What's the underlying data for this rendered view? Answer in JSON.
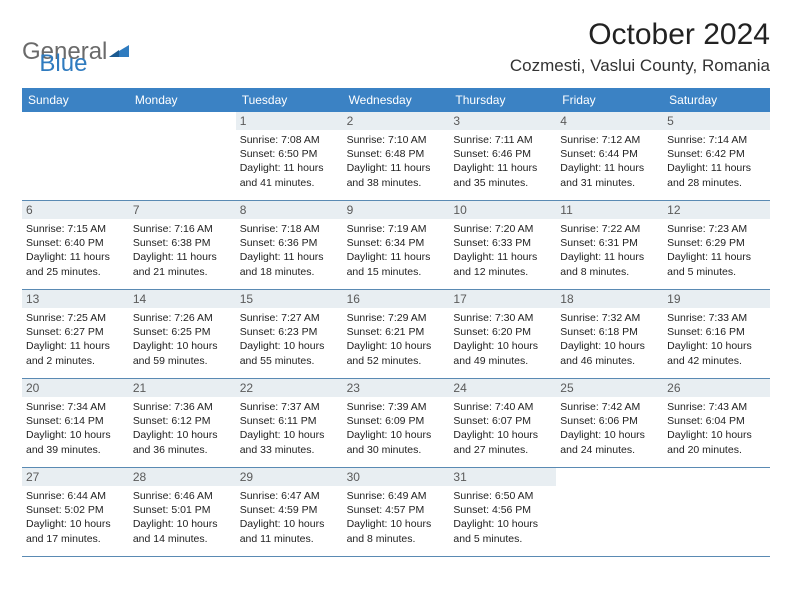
{
  "brand": {
    "part1": "General",
    "part2": "Blue"
  },
  "title": "October 2024",
  "location": "Cozmesti, Vaslui County, Romania",
  "header_bg": "#3b82c4",
  "dow": [
    "Sunday",
    "Monday",
    "Tuesday",
    "Wednesday",
    "Thursday",
    "Friday",
    "Saturday"
  ],
  "weeks": [
    [
      {
        "n": "",
        "sr": "",
        "ss": "",
        "dl": "",
        "empty": true
      },
      {
        "n": "",
        "sr": "",
        "ss": "",
        "dl": "",
        "empty": true
      },
      {
        "n": "1",
        "sr": "Sunrise: 7:08 AM",
        "ss": "Sunset: 6:50 PM",
        "dl": "Daylight: 11 hours and 41 minutes."
      },
      {
        "n": "2",
        "sr": "Sunrise: 7:10 AM",
        "ss": "Sunset: 6:48 PM",
        "dl": "Daylight: 11 hours and 38 minutes."
      },
      {
        "n": "3",
        "sr": "Sunrise: 7:11 AM",
        "ss": "Sunset: 6:46 PM",
        "dl": "Daylight: 11 hours and 35 minutes."
      },
      {
        "n": "4",
        "sr": "Sunrise: 7:12 AM",
        "ss": "Sunset: 6:44 PM",
        "dl": "Daylight: 11 hours and 31 minutes."
      },
      {
        "n": "5",
        "sr": "Sunrise: 7:14 AM",
        "ss": "Sunset: 6:42 PM",
        "dl": "Daylight: 11 hours and 28 minutes."
      }
    ],
    [
      {
        "n": "6",
        "sr": "Sunrise: 7:15 AM",
        "ss": "Sunset: 6:40 PM",
        "dl": "Daylight: 11 hours and 25 minutes."
      },
      {
        "n": "7",
        "sr": "Sunrise: 7:16 AM",
        "ss": "Sunset: 6:38 PM",
        "dl": "Daylight: 11 hours and 21 minutes."
      },
      {
        "n": "8",
        "sr": "Sunrise: 7:18 AM",
        "ss": "Sunset: 6:36 PM",
        "dl": "Daylight: 11 hours and 18 minutes."
      },
      {
        "n": "9",
        "sr": "Sunrise: 7:19 AM",
        "ss": "Sunset: 6:34 PM",
        "dl": "Daylight: 11 hours and 15 minutes."
      },
      {
        "n": "10",
        "sr": "Sunrise: 7:20 AM",
        "ss": "Sunset: 6:33 PM",
        "dl": "Daylight: 11 hours and 12 minutes."
      },
      {
        "n": "11",
        "sr": "Sunrise: 7:22 AM",
        "ss": "Sunset: 6:31 PM",
        "dl": "Daylight: 11 hours and 8 minutes."
      },
      {
        "n": "12",
        "sr": "Sunrise: 7:23 AM",
        "ss": "Sunset: 6:29 PM",
        "dl": "Daylight: 11 hours and 5 minutes."
      }
    ],
    [
      {
        "n": "13",
        "sr": "Sunrise: 7:25 AM",
        "ss": "Sunset: 6:27 PM",
        "dl": "Daylight: 11 hours and 2 minutes."
      },
      {
        "n": "14",
        "sr": "Sunrise: 7:26 AM",
        "ss": "Sunset: 6:25 PM",
        "dl": "Daylight: 10 hours and 59 minutes."
      },
      {
        "n": "15",
        "sr": "Sunrise: 7:27 AM",
        "ss": "Sunset: 6:23 PM",
        "dl": "Daylight: 10 hours and 55 minutes."
      },
      {
        "n": "16",
        "sr": "Sunrise: 7:29 AM",
        "ss": "Sunset: 6:21 PM",
        "dl": "Daylight: 10 hours and 52 minutes."
      },
      {
        "n": "17",
        "sr": "Sunrise: 7:30 AM",
        "ss": "Sunset: 6:20 PM",
        "dl": "Daylight: 10 hours and 49 minutes."
      },
      {
        "n": "18",
        "sr": "Sunrise: 7:32 AM",
        "ss": "Sunset: 6:18 PM",
        "dl": "Daylight: 10 hours and 46 minutes."
      },
      {
        "n": "19",
        "sr": "Sunrise: 7:33 AM",
        "ss": "Sunset: 6:16 PM",
        "dl": "Daylight: 10 hours and 42 minutes."
      }
    ],
    [
      {
        "n": "20",
        "sr": "Sunrise: 7:34 AM",
        "ss": "Sunset: 6:14 PM",
        "dl": "Daylight: 10 hours and 39 minutes."
      },
      {
        "n": "21",
        "sr": "Sunrise: 7:36 AM",
        "ss": "Sunset: 6:12 PM",
        "dl": "Daylight: 10 hours and 36 minutes."
      },
      {
        "n": "22",
        "sr": "Sunrise: 7:37 AM",
        "ss": "Sunset: 6:11 PM",
        "dl": "Daylight: 10 hours and 33 minutes."
      },
      {
        "n": "23",
        "sr": "Sunrise: 7:39 AM",
        "ss": "Sunset: 6:09 PM",
        "dl": "Daylight: 10 hours and 30 minutes."
      },
      {
        "n": "24",
        "sr": "Sunrise: 7:40 AM",
        "ss": "Sunset: 6:07 PM",
        "dl": "Daylight: 10 hours and 27 minutes."
      },
      {
        "n": "25",
        "sr": "Sunrise: 7:42 AM",
        "ss": "Sunset: 6:06 PM",
        "dl": "Daylight: 10 hours and 24 minutes."
      },
      {
        "n": "26",
        "sr": "Sunrise: 7:43 AM",
        "ss": "Sunset: 6:04 PM",
        "dl": "Daylight: 10 hours and 20 minutes."
      }
    ],
    [
      {
        "n": "27",
        "sr": "Sunrise: 6:44 AM",
        "ss": "Sunset: 5:02 PM",
        "dl": "Daylight: 10 hours and 17 minutes."
      },
      {
        "n": "28",
        "sr": "Sunrise: 6:46 AM",
        "ss": "Sunset: 5:01 PM",
        "dl": "Daylight: 10 hours and 14 minutes."
      },
      {
        "n": "29",
        "sr": "Sunrise: 6:47 AM",
        "ss": "Sunset: 4:59 PM",
        "dl": "Daylight: 10 hours and 11 minutes."
      },
      {
        "n": "30",
        "sr": "Sunrise: 6:49 AM",
        "ss": "Sunset: 4:57 PM",
        "dl": "Daylight: 10 hours and 8 minutes."
      },
      {
        "n": "31",
        "sr": "Sunrise: 6:50 AM",
        "ss": "Sunset: 4:56 PM",
        "dl": "Daylight: 10 hours and 5 minutes."
      },
      {
        "n": "",
        "sr": "",
        "ss": "",
        "dl": "",
        "empty": true
      },
      {
        "n": "",
        "sr": "",
        "ss": "",
        "dl": "",
        "empty": true
      }
    ]
  ]
}
